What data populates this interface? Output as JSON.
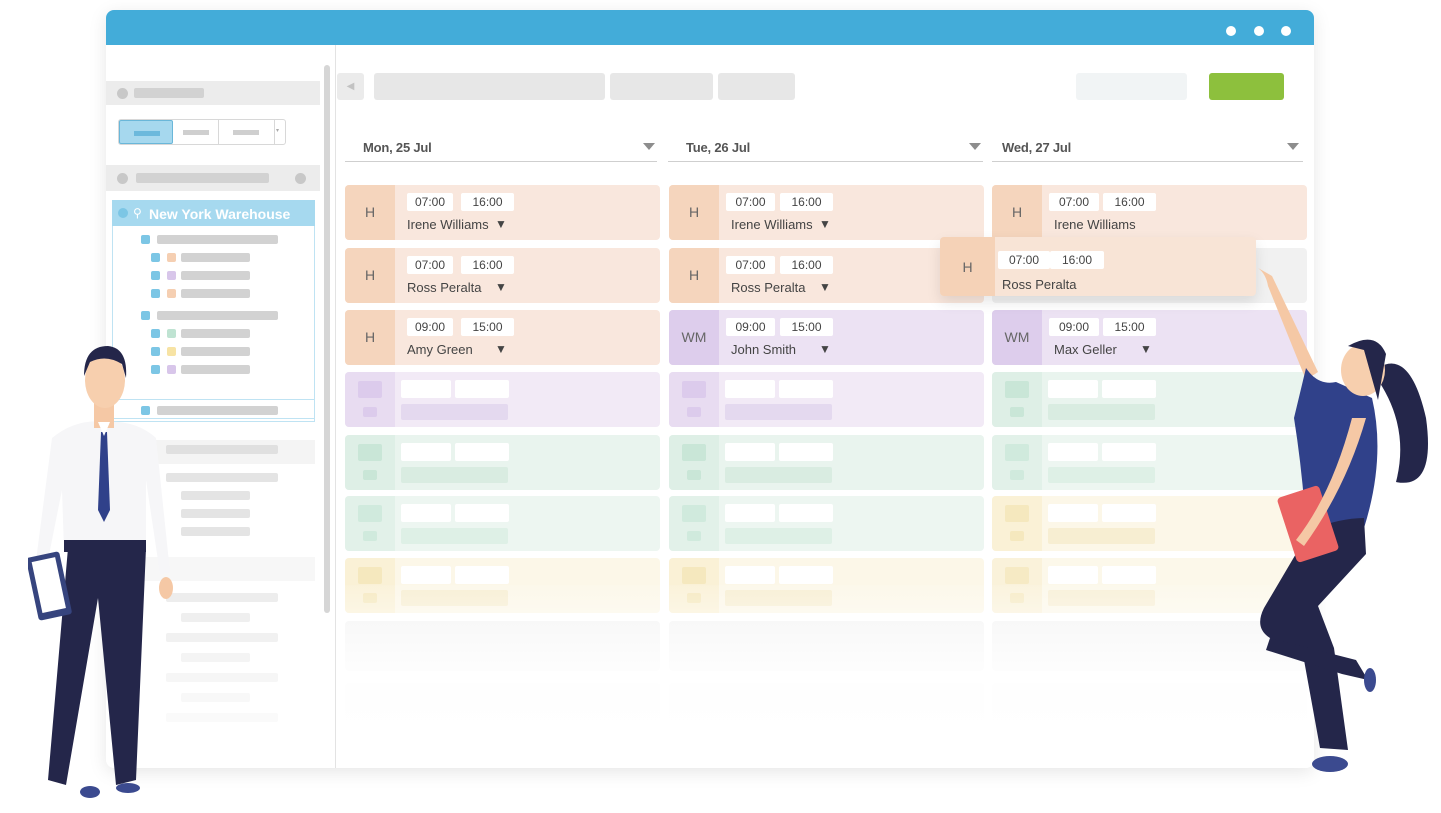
{
  "colors": {
    "titlebar": "#43acd9",
    "accent_green": "#8dc03d",
    "location_highlight": "#a6d9ef",
    "shift_orange": "#f9e7dd",
    "tag_orange": "#f5d5bd",
    "shift_purple": "#ece2f3",
    "tag_purple": "#ddcdec",
    "shift_green": "#e3f1ea",
    "shift_yellow": "#fbf5e0"
  },
  "sidebar": {
    "location_name": "New York Warehouse",
    "location_icon": "map-pin-icon"
  },
  "days": [
    {
      "label": "Mon, 25 Jul"
    },
    {
      "label": "Tue, 26 Jul"
    },
    {
      "label": "Wed, 27 Jul"
    }
  ],
  "shifts": {
    "mon": [
      {
        "tag": "H",
        "start": "07:00",
        "end": "16:00",
        "name": "Irene Williams"
      },
      {
        "tag": "H",
        "start": "07:00",
        "end": "16:00",
        "name": "Ross Peralta"
      },
      {
        "tag": "H",
        "start": "09:00",
        "end": "15:00",
        "name": "Amy Green"
      }
    ],
    "tue": [
      {
        "tag": "H",
        "start": "07:00",
        "end": "16:00",
        "name": "Irene Williams"
      },
      {
        "tag": "H",
        "start": "07:00",
        "end": "16:00",
        "name": "Ross Peralta"
      },
      {
        "tag": "WM",
        "start": "09:00",
        "end": "15:00",
        "name": "John Smith"
      }
    ],
    "wed": [
      {
        "tag": "H",
        "start": "07:00",
        "end": "16:00",
        "name": "Irene Williams"
      },
      {
        "tag": "WM",
        "start": "09:00",
        "end": "15:00",
        "name": "Max Geller"
      }
    ]
  },
  "dragging_shift": {
    "tag": "H",
    "start": "07:00",
    "end": "16:00",
    "name": "Ross Peralta"
  },
  "dropdown_glyph": "▼",
  "toolbar": {
    "prev_icon": "chevron-left-icon"
  }
}
